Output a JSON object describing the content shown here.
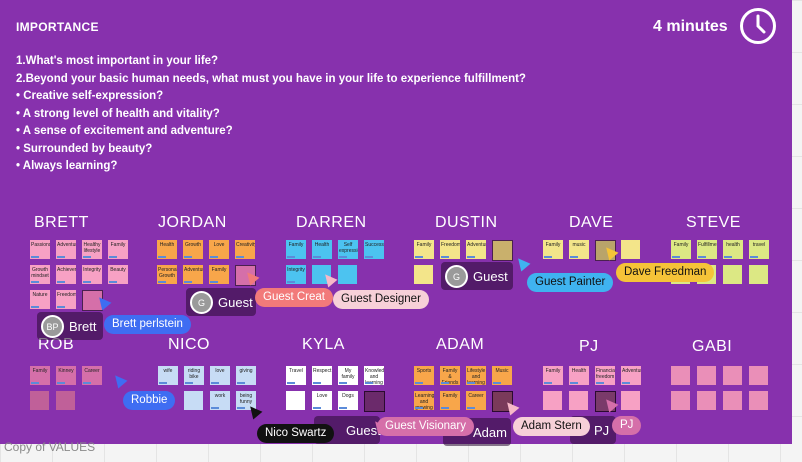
{
  "frame": {
    "title": "IMPORTANCE",
    "timer": "4 minutes",
    "label": "Copy of VALUES"
  },
  "prompts": [
    "1.What's most important in your life?",
    "2.Beyond your basic human needs, what must you have in your life to experience fulfillment?",
    "• Creative self-expression?",
    "• A strong level of health and vitality?",
    "• A sense of excitement and adventure?",
    "• Surrounded by beauty?",
    "• Always learning?"
  ],
  "people": {
    "brett": "BRETT",
    "jordan": "JORDAN",
    "darren": "DARREN",
    "dustin": "DUSTIN",
    "dave": "DAVE",
    "steve": "STEVE",
    "rob": "ROB",
    "nico": "NICO",
    "kyla": "KYLA",
    "adam": "ADAM",
    "pj": "PJ",
    "gabi": "GABI"
  },
  "notes": {
    "brett": [
      "Passions",
      "Adventure",
      "Healthy lifestyle",
      "Family",
      "Growth mindset",
      "Achievement",
      "Integrity",
      "Beauty",
      "Nature",
      "Freedom"
    ],
    "jordan": [
      "Health",
      "Growth",
      "Love",
      "Creativity",
      "Personal Growth",
      "Adventure",
      "Family"
    ],
    "darren": [
      "Family",
      "Health",
      "Self expression",
      "Success",
      "Integrity"
    ],
    "dustin": [
      "Family",
      "Freedom",
      "Adventure"
    ],
    "dave": [
      "Family",
      "music"
    ],
    "steve": [
      "Family",
      "Fulfillment",
      "health",
      "travel"
    ],
    "rob": [
      "Family",
      "Kinney",
      "Career"
    ],
    "nico": [
      "wife",
      "riding bike",
      "love",
      "giving",
      "work",
      "being funny"
    ],
    "kyla": [
      "Travel",
      "Respect",
      "My family",
      "Knowledge and learning",
      "Love",
      "Dogs"
    ],
    "adam": [
      "Sports",
      "Family & Friends",
      "Lifestyle and learning",
      "Music",
      "Learning and growing",
      "Family",
      "Career"
    ],
    "pj": [
      "Family",
      "Health",
      "Financial freedom",
      "Adventure"
    ]
  },
  "cursors": {
    "brett_avatar": "BP",
    "brett_name": "Brett",
    "brett_pill": "Brett perlstein",
    "guest_avatar": "G",
    "guest": "Guest",
    "guest_creative": "Guest Creat",
    "guest_designer": "Guest Designer",
    "guest_painter": "Guest Painter",
    "dave_freedman": "Dave Freedman",
    "robbie": "Robbie",
    "nico_swartz": "Nico Swartz",
    "guest_visionary": "Guest Visionary",
    "adam_label": "Adam",
    "adam_stern": "Adam Stern",
    "pj_tile": "PJ",
    "pj_pill": "PJ"
  },
  "colors": {
    "frame": "#8731ad",
    "pink": "#f7a1c4",
    "orange": "#f8a64a",
    "blue": "#4cc3f0",
    "yellow": "#f3e58a",
    "yellowgreen": "#dce884",
    "mauve": "#d56fa9"
  }
}
